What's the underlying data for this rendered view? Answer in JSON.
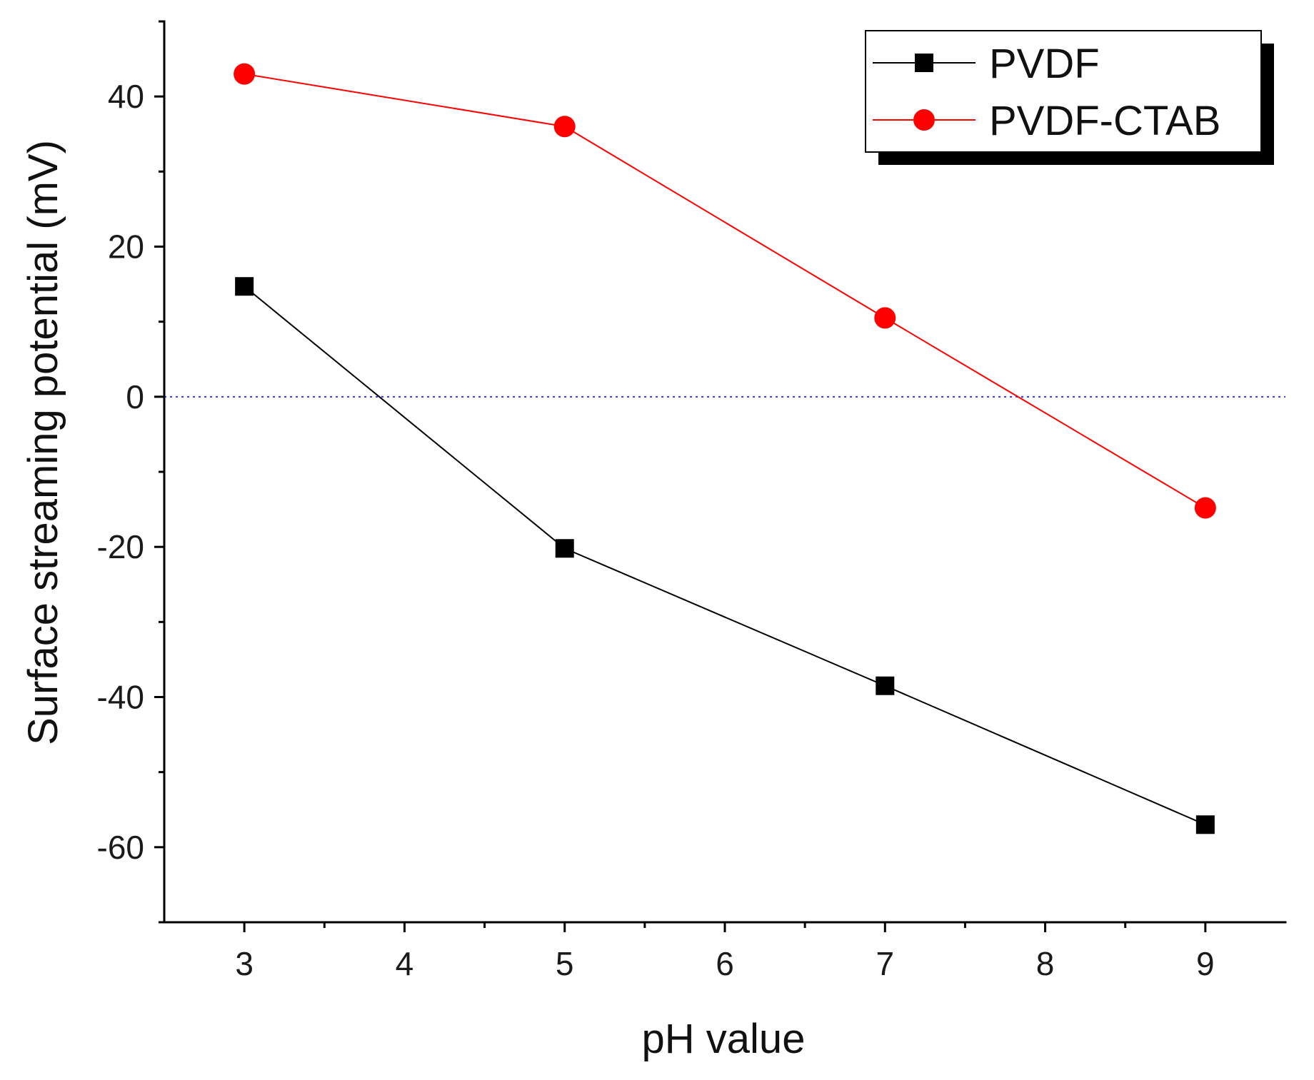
{
  "chart_data": {
    "type": "line",
    "title": "",
    "xlabel": "pH value",
    "ylabel": "Surface streaming potential (mV)",
    "xlim": [
      2.5,
      9.5
    ],
    "ylim": [
      -70,
      50
    ],
    "x_ticks_major": [
      3,
      4,
      5,
      6,
      7,
      8,
      9
    ],
    "x_ticks_minor": [
      3.5,
      4.5,
      5.5,
      6.5,
      7.5,
      8.5
    ],
    "x_tick_labels": [
      "3",
      "4",
      "5",
      "6",
      "7",
      "8",
      "9"
    ],
    "y_ticks_major": [
      -60,
      -40,
      -20,
      0,
      20,
      40
    ],
    "y_ticks_minor": [
      -70,
      -50,
      -30,
      -10,
      10,
      30,
      50
    ],
    "y_tick_labels": [
      "-60",
      "-40",
      "-20",
      "0",
      "20",
      "40"
    ],
    "reference_line": {
      "y": 0,
      "style": "dotted",
      "color": "#3333ff"
    },
    "legend_position": "top-right",
    "series": [
      {
        "name": "PVDF",
        "marker": "square",
        "color": "#000000",
        "x": [
          3,
          5,
          7,
          9
        ],
        "y": [
          14.7,
          -20.2,
          -38.5,
          -57.0
        ]
      },
      {
        "name": "PVDF-CTAB",
        "marker": "circle",
        "color": "#ff0000",
        "x": [
          3,
          5,
          7,
          9
        ],
        "y": [
          43.0,
          36.0,
          10.5,
          -14.8
        ]
      }
    ]
  }
}
